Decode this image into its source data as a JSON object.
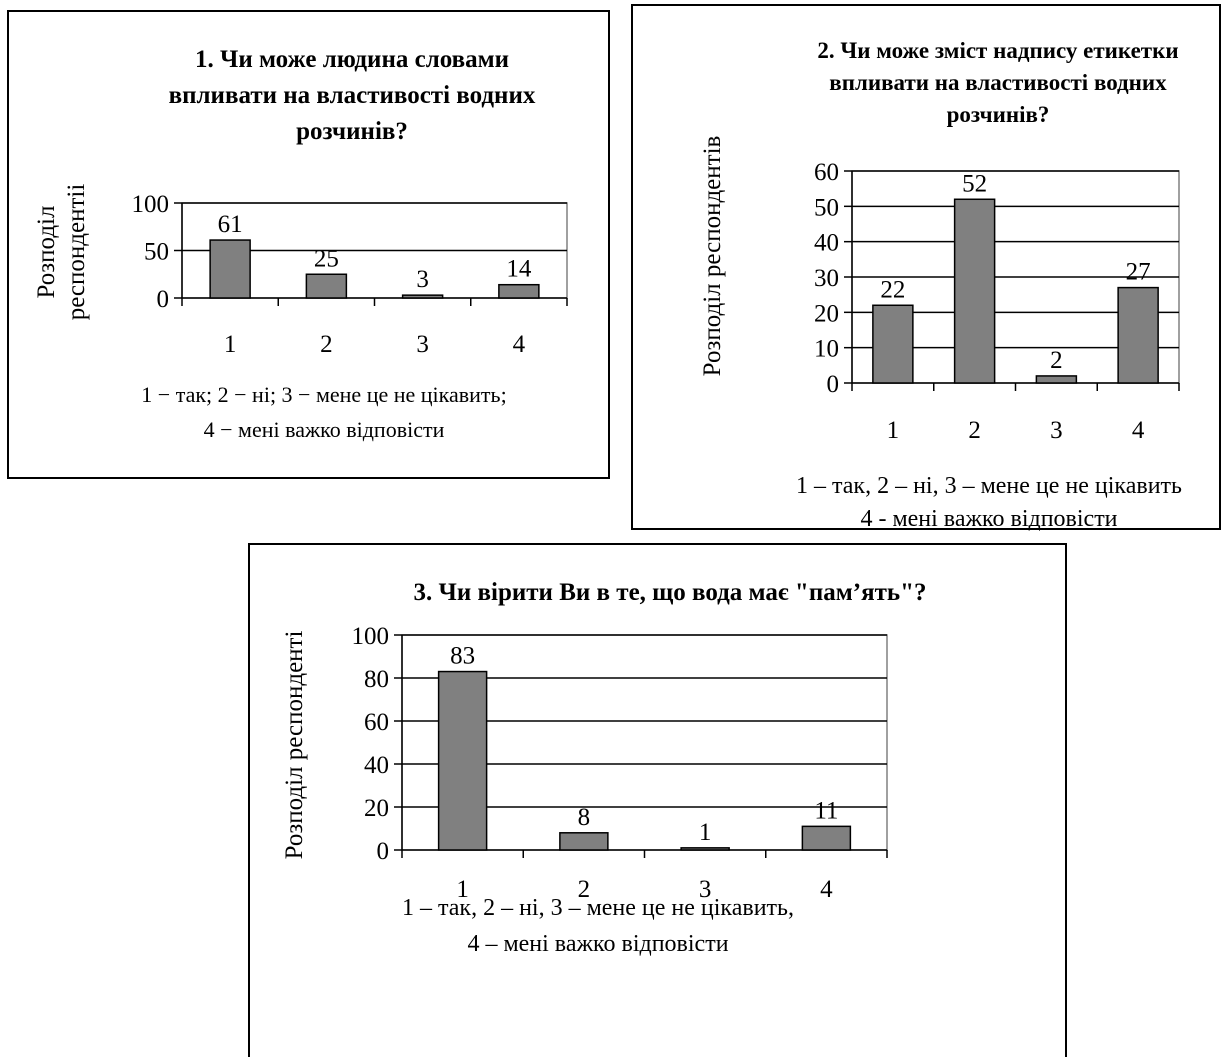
{
  "chart_data": [
    {
      "type": "bar",
      "title_lines": [
        "1. Чи може людина словами",
        "впливати на властивості водних",
        "розчинів?"
      ],
      "ylabel_lines": [
        "Розподіл",
        "респондентіі"
      ],
      "categories": [
        "1",
        "2",
        "3",
        "4"
      ],
      "values": [
        61,
        25,
        3,
        14
      ],
      "ylim": [
        0,
        100
      ],
      "yticks": [
        0,
        50,
        100
      ],
      "caption_lines": [
        "1 − так; 2 − ні; 3 − мене це не цікавить;",
        "4 − мені важко відповісти"
      ],
      "grid": true,
      "bar_color": "#808080"
    },
    {
      "type": "bar",
      "title_lines": [
        "2. Чи може зміст надпису етикетки",
        "впливати на властивості водних",
        "розчинів?"
      ],
      "ylabel_lines": [
        "Розподіл респондентів"
      ],
      "categories": [
        "1",
        "2",
        "3",
        "4"
      ],
      "values": [
        22,
        52,
        2,
        27
      ],
      "ylim": [
        0,
        60
      ],
      "yticks": [
        0,
        10,
        20,
        30,
        40,
        50,
        60
      ],
      "caption_lines": [
        "1 – так, 2 – ні, 3 – мене це не цікавить",
        "4 -  мені важко відповісти"
      ],
      "grid": true,
      "bar_color": "#808080"
    },
    {
      "type": "bar",
      "title_lines": [
        "3. Чи вірити Ви в те, що вода має \"пам’ять\"?"
      ],
      "ylabel_lines": [
        "Розподіл респонденті"
      ],
      "categories": [
        "1",
        "2",
        "3",
        "4"
      ],
      "values": [
        83,
        8,
        1,
        11
      ],
      "ylim": [
        0,
        100
      ],
      "yticks": [
        0,
        20,
        40,
        60,
        80,
        100
      ],
      "caption_lines": [
        "1 – так, 2 – ні, 3 – мене це не цікавить,",
        "4 – мені важко відповісти"
      ],
      "grid": true,
      "bar_color": "#808080"
    }
  ]
}
